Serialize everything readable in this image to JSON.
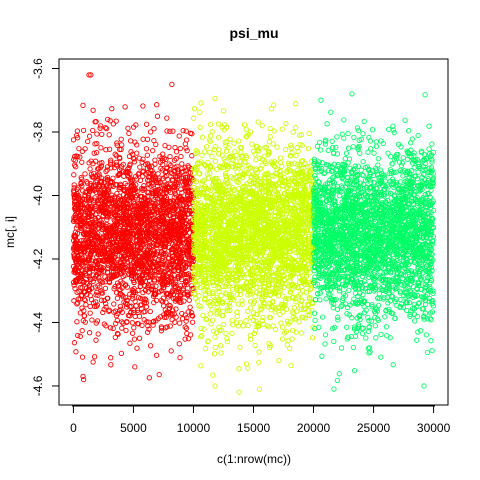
{
  "chart_data": {
    "type": "scatter",
    "title": "psi_mu",
    "xlabel": "c(1:nrow(mc))",
    "ylabel": "mc[, i]",
    "xlim": [
      -1200,
      31200
    ],
    "ylim": [
      -4.66,
      -3.57
    ],
    "x_ticks": [
      0,
      5000,
      10000,
      15000,
      20000,
      25000,
      30000
    ],
    "y_ticks": [
      -4.6,
      -4.4,
      -4.2,
      -4.0,
      -3.8,
      -3.6
    ],
    "x_tick_labels": [
      "0",
      "5000",
      "10000",
      "15000",
      "20000",
      "25000",
      "30000"
    ],
    "y_tick_labels": [
      "-4.6",
      "-4.4",
      "-4.2",
      "-4.0",
      "-3.8",
      "-3.6"
    ],
    "grid": false,
    "marker": "open-circle",
    "series": [
      {
        "x_range": [
          1,
          10000
        ],
        "center": -4.12,
        "sd": 0.135,
        "color": "#FF0000"
      },
      {
        "x_range": [
          10001,
          20000
        ],
        "center": -4.12,
        "sd": 0.135,
        "color": "#CCFF00"
      },
      {
        "x_range": [
          20001,
          30000
        ],
        "center": -4.12,
        "sd": 0.135,
        "color": "#00FF66"
      }
    ],
    "notable_points": [
      {
        "x": 1300,
        "y": -3.62,
        "series": 0
      },
      {
        "x": 1450,
        "y": -3.62,
        "series": 0
      },
      {
        "x": 8200,
        "y": -3.65,
        "series": 0
      },
      {
        "x": 800,
        "y": -4.57,
        "series": 0
      },
      {
        "x": 850,
        "y": -4.58,
        "series": 0
      },
      {
        "x": 15500,
        "y": -4.61,
        "series": 1
      },
      {
        "x": 13800,
        "y": -4.62,
        "series": 1
      },
      {
        "x": 11800,
        "y": -4.6,
        "series": 1
      },
      {
        "x": 23200,
        "y": -3.68,
        "series": 2
      },
      {
        "x": 21700,
        "y": -4.61,
        "series": 2
      },
      {
        "x": 29200,
        "y": -4.6,
        "series": 2
      }
    ]
  }
}
